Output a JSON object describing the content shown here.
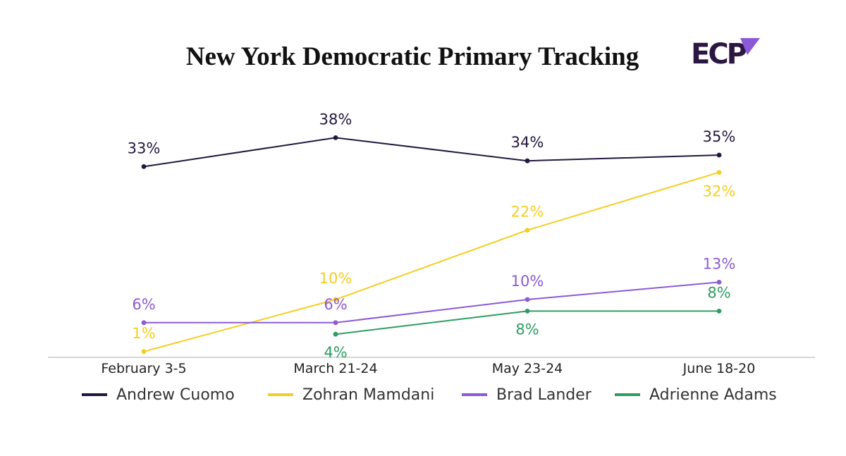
{
  "chart_data": {
    "type": "line",
    "title": "New York Democratic Primary Tracking",
    "logo_text": "ECP",
    "categories": [
      "February 3-5",
      "March 21-24",
      "May 23-24",
      "June 18-20"
    ],
    "series": [
      {
        "name": "Andrew Cuomo",
        "color": "#23173f",
        "values": [
          33,
          38,
          34,
          35
        ],
        "labels": [
          "33%",
          "38%",
          "34%",
          "35%"
        ]
      },
      {
        "name": "Zohran Mamdani",
        "color": "#f5cd22",
        "values": [
          1,
          10,
          22,
          32
        ],
        "labels": [
          "1%",
          "10%",
          "22%",
          "32%"
        ]
      },
      {
        "name": "Brad Lander",
        "color": "#8c5ad6",
        "values": [
          6,
          6,
          10,
          13
        ],
        "labels": [
          "6%",
          "6%",
          "10%",
          "13%"
        ]
      },
      {
        "name": "Adrienne Adams",
        "color": "#2e9d62",
        "values": [
          null,
          4,
          8,
          8
        ],
        "labels": [
          null,
          "4%",
          "8%",
          "8%"
        ]
      }
    ],
    "ylim": [
      0,
      38
    ],
    "xlabel": "",
    "ylabel": "",
    "grid": false,
    "legend_position": "bottom"
  },
  "brand": {
    "logo_color": "#2a1742",
    "logo_accent": "#8c5ad6"
  }
}
